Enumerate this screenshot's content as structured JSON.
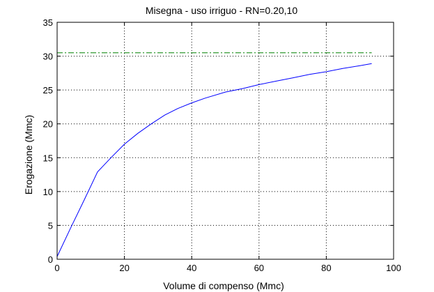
{
  "chart_data": {
    "type": "line",
    "title": "Misegna  -  uso irriguo  -   RN=0.20,10",
    "xlabel": "Volume di compenso (Mmc)",
    "ylabel": "Erogazione (Mmc)",
    "xlim": [
      0,
      100
    ],
    "ylim": [
      0,
      35
    ],
    "xticks": [
      "0",
      "20",
      "40",
      "60",
      "80",
      "100"
    ],
    "yticks": [
      "0",
      "5",
      "10",
      "15",
      "20",
      "25",
      "30",
      "35"
    ],
    "grid": true,
    "legend": "none",
    "series": [
      {
        "color": "#0000ff",
        "style": "solid",
        "x": [
          0,
          4,
          8,
          12,
          16,
          20,
          24,
          28,
          32,
          36,
          40,
          44,
          50,
          55,
          60,
          65,
          70,
          75,
          80,
          85,
          90,
          93.5
        ],
        "y": [
          0.4,
          4.6,
          8.7,
          12.9,
          15.0,
          17.0,
          18.6,
          20.0,
          21.3,
          22.3,
          23.1,
          23.8,
          24.7,
          25.2,
          25.8,
          26.3,
          26.8,
          27.3,
          27.7,
          28.2,
          28.6,
          28.9
        ]
      },
      {
        "color": "#008000",
        "style": "dash-dot",
        "x": [
          0,
          93.5
        ],
        "y": [
          30.5,
          30.5
        ]
      }
    ]
  }
}
